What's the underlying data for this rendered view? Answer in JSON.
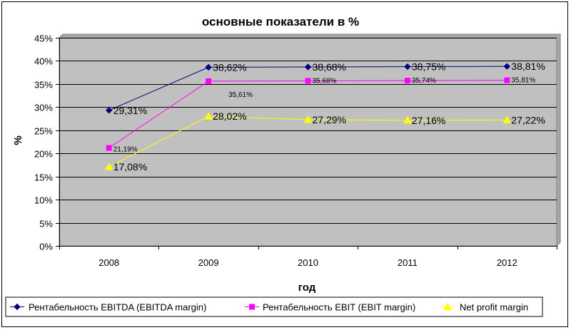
{
  "chart_data": {
    "type": "line",
    "title": "основные показатели в %",
    "xlabel": "год",
    "ylabel": "%",
    "x": [
      "2008",
      "2009",
      "2010",
      "2011",
      "2012"
    ],
    "ylim": [
      0,
      45
    ],
    "yticks": [
      "0%",
      "5%",
      "10%",
      "15%",
      "20%",
      "25%",
      "30%",
      "35%",
      "40%",
      "45%"
    ],
    "grid": true,
    "legend_position": "bottom",
    "series": [
      {
        "name": "Рентабельность EBITDA (EBITDA margin)",
        "values": [
          29.31,
          38.62,
          38.68,
          38.75,
          38.81
        ],
        "labels": [
          "29,31%",
          "38,62%",
          "38,68%",
          "38,75%",
          "38,81%"
        ],
        "color": "#000080",
        "marker": "diamond",
        "label_size": "large"
      },
      {
        "name": "Рентабельность EBIT (EBIT margin)",
        "values": [
          21.19,
          35.61,
          35.68,
          35.74,
          35.81
        ],
        "labels": [
          "21,19%",
          "35,61%",
          "35,68%",
          "35,74%",
          "35,81%"
        ],
        "color": "#ff00ff",
        "marker": "square",
        "label_size": "small"
      },
      {
        "name": "Net profit margin",
        "values": [
          17.08,
          28.02,
          27.29,
          27.16,
          27.22
        ],
        "labels": [
          "17,08%",
          "28,02%",
          "27,29%",
          "27,16%",
          "27,22%"
        ],
        "color": "#ffff00",
        "marker": "triangle",
        "label_size": "large"
      }
    ],
    "plot_background": "#c0c0c0",
    "grid_color": "#000000"
  }
}
